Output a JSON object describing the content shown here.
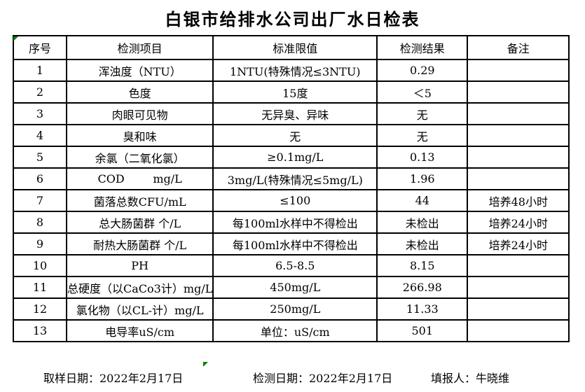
{
  "title": "白银市给排水公司出厂水日检表",
  "table": {
    "headers": [
      "序号",
      "检测项目",
      "标准限值",
      "检测结果",
      "备注"
    ],
    "rows": [
      {
        "no": "1",
        "item": "浑浊度（NTU）",
        "standard": "1NTU(特殊情况≤3NTU)",
        "result": "0.29",
        "remark": ""
      },
      {
        "no": "2",
        "item": "色度",
        "standard": "15度",
        "result": "＜5",
        "remark": ""
      },
      {
        "no": "3",
        "item": "肉眼可见物",
        "standard": "无异臭、异味",
        "result": "无",
        "remark": ""
      },
      {
        "no": "4",
        "item": "臭和味",
        "standard": "无",
        "result": "无",
        "remark": ""
      },
      {
        "no": "5",
        "item": "余氯（二氧化氯）",
        "standard": "≥0.1mg/L",
        "result": "0.13",
        "remark": ""
      },
      {
        "no": "6",
        "item": "COD        mg/L",
        "standard": "3mg/L(特殊情况≤5mg/L)",
        "result": "1.96",
        "remark": ""
      },
      {
        "no": "7",
        "item": "菌落总数CFU/mL",
        "standard": "≤100",
        "result": "44",
        "remark": "培养48小时"
      },
      {
        "no": "8",
        "item": "总大肠菌群 个/L",
        "standard": "每100ml水样中不得检出",
        "result": "未检出",
        "remark": "培养24小时"
      },
      {
        "no": "9",
        "item": "耐热大肠菌群 个/L",
        "standard": "每100ml水样中不得检出",
        "result": "未检出",
        "remark": "培养24小时"
      },
      {
        "no": "10",
        "item": "PH",
        "standard": "6.5-8.5",
        "result": "8.15",
        "remark": ""
      },
      {
        "no": "11",
        "item": "总硬度（以CaCo3计）mg/L",
        "standard": "450mg/L",
        "result": "266.98",
        "remark": ""
      },
      {
        "no": "12",
        "item": "氯化物（以CL-计）mg/L",
        "standard": "250mg/L",
        "result": "11.33",
        "remark": ""
      },
      {
        "no": "13",
        "item": "电导率uS/cm",
        "standard": "单位：uS/cm",
        "result": "501",
        "remark": ""
      }
    ]
  },
  "footer": {
    "sampling_date": "取样日期：2022年2月17日",
    "test_date": "检测日期：2022年2月17日",
    "reporter": "填报人：牛晓维"
  },
  "colors": {
    "grid": "#000000",
    "background": "#ffffff",
    "text": "#000000",
    "marker_green": "#008000"
  }
}
